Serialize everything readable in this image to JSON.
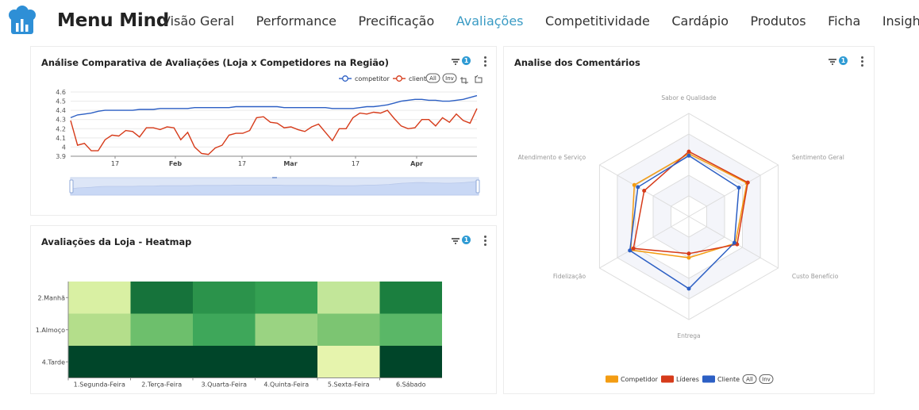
{
  "header": {
    "brand": "Menu Mind",
    "logo_icon": "chef-hat-chart-icon",
    "nav": [
      {
        "label": "Visão Geral",
        "active": false
      },
      {
        "label": "Performance",
        "active": false
      },
      {
        "label": "Precificação",
        "active": false
      },
      {
        "label": "Avaliações",
        "active": true
      },
      {
        "label": "Competitividade",
        "active": false
      },
      {
        "label": "Cardápio",
        "active": false
      },
      {
        "label": "Produtos",
        "active": false
      },
      {
        "label": "Ficha",
        "active": false
      },
      {
        "label": "Insights",
        "active": false
      }
    ]
  },
  "colors": {
    "accent": "#3a9bc4",
    "competitor_line": "#2c5fc4",
    "client_line": "#d63b1a",
    "radar_competitor": "#f39c12",
    "radar_lideres": "#d63b1a",
    "radar_cliente": "#2c5fc4"
  },
  "panels": {
    "comparison": {
      "title": "Análise Comparativa de Avaliações (Loja x Competidores na Região)",
      "filter_count": "1"
    },
    "heatmap": {
      "title": "Avaliações da Loja - Heatmap",
      "filter_count": "1"
    },
    "radar": {
      "title": "Analise dos Comentários",
      "filter_count": "1"
    }
  },
  "legend_buttons": {
    "all": "All",
    "inv": "Inv"
  },
  "chart_data": [
    {
      "type": "line",
      "title": "Análise Comparativa de Avaliações (Loja x Competidores na Região)",
      "x_ticks": [
        "17",
        "Feb",
        "17",
        "Mar",
        "17",
        "Apr"
      ],
      "y_ticks": [
        "4.6",
        "4.5",
        "4.4",
        "4.3",
        "4.2",
        "4.1",
        "4",
        "3.9"
      ],
      "ylim": [
        3.9,
        4.6
      ],
      "legend_position": "top-right",
      "grid": true,
      "series": [
        {
          "name": "competitor",
          "values": [
            4.32,
            4.35,
            4.36,
            4.37,
            4.39,
            4.4,
            4.4,
            4.4,
            4.4,
            4.4,
            4.41,
            4.41,
            4.41,
            4.42,
            4.42,
            4.42,
            4.42,
            4.42,
            4.43,
            4.43,
            4.43,
            4.43,
            4.43,
            4.43,
            4.44,
            4.44,
            4.44,
            4.44,
            4.44,
            4.44,
            4.44,
            4.43,
            4.43,
            4.43,
            4.43,
            4.43,
            4.43,
            4.43,
            4.42,
            4.42,
            4.42,
            4.42,
            4.43,
            4.44,
            4.44,
            4.45,
            4.46,
            4.48,
            4.5,
            4.51,
            4.52,
            4.52,
            4.51,
            4.51,
            4.5,
            4.5,
            4.51,
            4.52,
            4.54,
            4.56
          ]
        },
        {
          "name": "client",
          "values": [
            4.29,
            4.02,
            4.04,
            3.96,
            3.96,
            4.08,
            4.13,
            4.12,
            4.18,
            4.17,
            4.11,
            4.21,
            4.21,
            4.19,
            4.22,
            4.21,
            4.08,
            4.16,
            4.0,
            3.93,
            3.92,
            3.99,
            4.02,
            4.13,
            4.15,
            4.15,
            4.18,
            4.32,
            4.33,
            4.27,
            4.26,
            4.21,
            4.22,
            4.19,
            4.17,
            4.22,
            4.25,
            4.16,
            4.07,
            4.2,
            4.2,
            4.32,
            4.37,
            4.36,
            4.38,
            4.37,
            4.4,
            4.31,
            4.23,
            4.2,
            4.21,
            4.3,
            4.3,
            4.23,
            4.32,
            4.27,
            4.36,
            4.29,
            4.26,
            4.42
          ]
        }
      ]
    },
    {
      "type": "heatmap",
      "title": "Avaliações da Loja - Heatmap",
      "x": [
        "1.Segunda-Feira",
        "2.Terça-Feira",
        "3.Quarta-Feira",
        "4.Quinta-Feira",
        "5.Sexta-Feira",
        "6.Sábado"
      ],
      "y": [
        "2.Manhã",
        "1.Almoço",
        "4.Tarde"
      ],
      "colors": [
        [
          "#d9f0a3",
          "#16733b",
          "#2b934b",
          "#34a052",
          "#c2e699",
          "#1b7f3f"
        ],
        [
          "#b4de8b",
          "#6dbf6c",
          "#3ea75a",
          "#9ad382",
          "#7cc572",
          "#5ab767"
        ],
        [
          "#004529",
          "#004529",
          "#004529",
          "#004529",
          "#e6f4ad",
          "#004529"
        ]
      ]
    },
    {
      "type": "radar",
      "title": "Analise dos Comentários",
      "axes": [
        "Sabor e Qualidade",
        "Sentimento Geral",
        "Custo Benefício",
        "Entrega",
        "Fidelização",
        "Atendimento e Serviço"
      ],
      "max": 100,
      "legend_position": "bottom",
      "series": [
        {
          "name": "Competidor",
          "values": [
            61,
            65,
            52,
            40,
            65,
            61
          ]
        },
        {
          "name": "Líderes",
          "values": [
            63,
            66,
            54,
            36,
            62,
            50
          ]
        },
        {
          "name": "Cliente",
          "values": [
            59,
            56,
            51,
            70,
            66,
            57
          ]
        }
      ]
    }
  ]
}
